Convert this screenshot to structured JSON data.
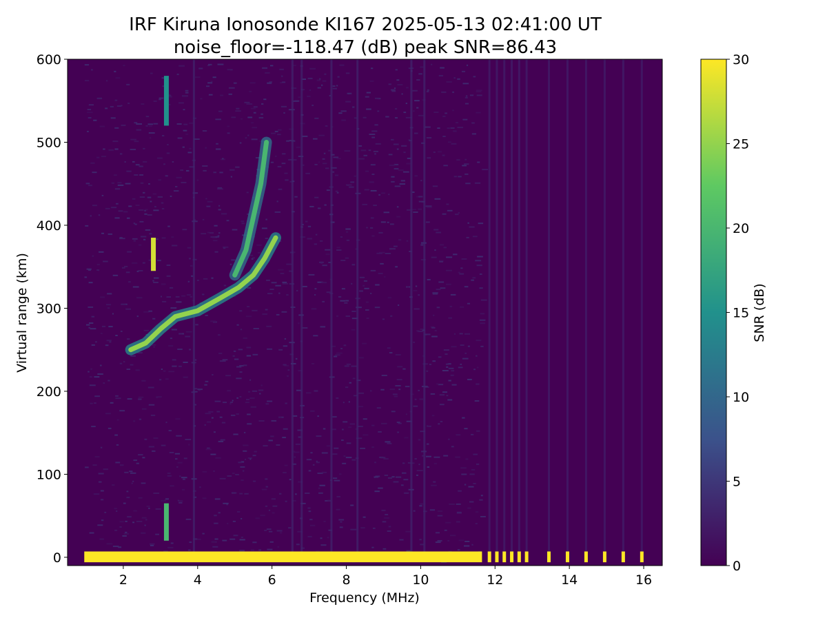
{
  "chart_data": {
    "type": "heatmap",
    "title": "IRF Kiruna Ionosonde KI167 2025-05-13 02:41:00  UT",
    "subtitle": "noise_floor=-118.47 (dB) peak SNR=86.43",
    "xlabel": "Frequency (MHz)",
    "ylabel": "Virtual range (km)",
    "xlim": [
      0.5,
      16.5
    ],
    "ylim": [
      -10,
      600
    ],
    "xticks": [
      2,
      4,
      6,
      8,
      10,
      12,
      14,
      16
    ],
    "yticks": [
      0,
      100,
      200,
      300,
      400,
      500,
      600
    ],
    "colorbar": {
      "label": "SNR (dB)",
      "range": [
        0,
        30
      ],
      "ticks": [
        0,
        5,
        10,
        15,
        20,
        25,
        30
      ],
      "colormap": "viridis"
    },
    "colors": {
      "background": "#440154",
      "noise": "#472c7a",
      "mid": "#21918c",
      "high": "#5ec962",
      "max": "#fde725"
    },
    "echo_traces": [
      {
        "name": "ground/low-range echo",
        "x": [
          0.95,
          11.65
        ],
        "y": [
          0,
          0
        ],
        "snr": 30
      },
      {
        "name": "F-layer trace",
        "points": [
          [
            2.2,
            250
          ],
          [
            2.6,
            258
          ],
          [
            3.0,
            275
          ],
          [
            3.4,
            290
          ],
          [
            4.0,
            297
          ],
          [
            4.6,
            312
          ],
          [
            5.1,
            325
          ],
          [
            5.5,
            340
          ],
          [
            5.8,
            360
          ],
          [
            6.1,
            385
          ]
        ],
        "snr": 25
      },
      {
        "name": "upper trace",
        "points": [
          [
            5.0,
            340
          ],
          [
            5.3,
            370
          ],
          [
            5.5,
            410
          ],
          [
            5.7,
            450
          ],
          [
            5.85,
            500
          ]
        ],
        "snr": 20
      },
      {
        "name": "sporadic patch",
        "x": 2.8,
        "y": [
          345,
          385
        ],
        "snr": 28
      },
      {
        "name": "low range patch",
        "x": 3.15,
        "y": [
          20,
          65
        ],
        "snr": 20
      },
      {
        "name": "high range patch",
        "x": 3.15,
        "y": [
          520,
          580
        ],
        "snr": 15
      }
    ],
    "discrete_columns_x": [
      11.85,
      12.05,
      12.25,
      12.45,
      12.65,
      12.85,
      13.45,
      13.95,
      14.45,
      14.95,
      15.45,
      15.95
    ]
  }
}
